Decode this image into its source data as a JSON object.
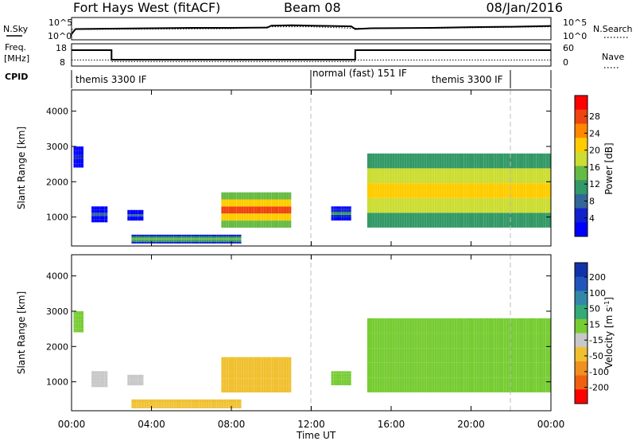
{
  "header": {
    "station": "Fort Hays West (fitACF)",
    "beam": "Beam 08",
    "date": "08/Jan/2016"
  },
  "noise_panel": {
    "left_label": "N.Sky",
    "right_label": "N.Search",
    "top_tick": "10^5",
    "bottom_tick": "10^0"
  },
  "freq_panel": {
    "left_label_line1": "Freq.",
    "left_label_line2": "[MHz]",
    "right_label": "Nave",
    "left_ticks": [
      "18",
      "8"
    ],
    "right_ticks": [
      "60",
      "0"
    ]
  },
  "cpid": {
    "label": "CPID",
    "segments": [
      {
        "name": "themis 3300 IF",
        "start_hour": 0,
        "end_hour": 12
      },
      {
        "name": "normal (fast) 151 IF",
        "start_hour": 12,
        "end_hour": 22
      },
      {
        "name": "themis 3300 IF",
        "start_hour": 22,
        "end_hour": 24
      }
    ]
  },
  "power_colorbar": {
    "label": "Power [dB]",
    "ticks": [
      "28",
      "24",
      "20",
      "16",
      "12",
      "8",
      "4"
    ],
    "colors": [
      "#ff0000",
      "#ee4411",
      "#ff8800",
      "#ffcc00",
      "#ccdd33",
      "#66bb44",
      "#339966",
      "#336699",
      "#1122cc",
      "#0000ff"
    ]
  },
  "velocity_colorbar": {
    "label": "Velocity [m s",
    "label_sup": "-1",
    "label_end": "]",
    "ticks": [
      "200",
      "100",
      "50",
      "15",
      "-15",
      "-50",
      "-100",
      "-200"
    ],
    "colors": [
      "#1133aa",
      "#2255bb",
      "#3388aa",
      "#33aa77",
      "#77cc33",
      "#c8c8c8",
      "#f0c030",
      "#f09020",
      "#f06010",
      "#ff0000"
    ]
  },
  "range_axis": {
    "label": "Slant Range [km]",
    "ticks": [
      "4000",
      "3000",
      "2000",
      "1000"
    ]
  },
  "time_axis": {
    "label": "Time UT",
    "ticks": [
      "00:00",
      "04:00",
      "08:00",
      "12:00",
      "16:00",
      "20:00",
      "00:00"
    ]
  },
  "chart_data": {
    "type": "heatmap",
    "x_range_hours": [
      0,
      24
    ],
    "y_range_km": [
      180,
      4600
    ],
    "vertical_markers_hours": [
      12,
      22
    ],
    "noise_sky_log10": [
      [
        0,
        1.1
      ],
      [
        0.2,
        2.4
      ],
      [
        2,
        2.5
      ],
      [
        4,
        2.6
      ],
      [
        6,
        2.7
      ],
      [
        8,
        2.7
      ],
      [
        9.8,
        2.8
      ],
      [
        10,
        3.3
      ],
      [
        11,
        3.4
      ],
      [
        12,
        3.3
      ],
      [
        13,
        3.2
      ],
      [
        14,
        3.1
      ],
      [
        14.2,
        2.4
      ],
      [
        15,
        2.6
      ],
      [
        18,
        2.7
      ],
      [
        20,
        2.9
      ],
      [
        22,
        3.0
      ],
      [
        24,
        3.2
      ]
    ],
    "noise_search_log10": [
      [
        0,
        2.3
      ],
      [
        4,
        2.4
      ],
      [
        8,
        2.5
      ],
      [
        10,
        3.0
      ],
      [
        12,
        3.0
      ],
      [
        14.2,
        2.6
      ],
      [
        18,
        2.6
      ],
      [
        24,
        3.0
      ]
    ],
    "frequency_mhz": [
      [
        0,
        15.5
      ],
      [
        2,
        15.5
      ],
      [
        2,
        10.5
      ],
      [
        14.2,
        10.5
      ],
      [
        14.2,
        15.5
      ],
      [
        24,
        15.5
      ]
    ],
    "nave": [
      [
        0,
        14
      ],
      [
        2,
        14
      ],
      [
        2,
        9
      ],
      [
        14.2,
        9
      ],
      [
        14.2,
        14
      ],
      [
        24,
        14
      ]
    ],
    "echo_regions": [
      {
        "name": "early-high",
        "t0": 0.1,
        "t1": 0.6,
        "r0": 2400,
        "r1": 3000,
        "power": 6,
        "velocity": 0
      },
      {
        "name": "early-low",
        "t0": 1.0,
        "t1": 1.8,
        "r0": 850,
        "r1": 1300,
        "power": 9,
        "velocity": -40
      },
      {
        "name": "mid-low",
        "t0": 2.8,
        "t1": 3.6,
        "r0": 900,
        "r1": 1200,
        "power": 8,
        "velocity": -35
      },
      {
        "name": "near-range",
        "t0": 3.0,
        "t1": 8.5,
        "r0": 250,
        "r1": 500,
        "power": 16,
        "velocity": -60
      },
      {
        "name": "evening-patch",
        "t0": 7.5,
        "t1": 11.0,
        "r0": 700,
        "r1": 1700,
        "power": 26,
        "velocity": -70
      },
      {
        "name": "patch-2",
        "t0": 13.0,
        "t1": 14.0,
        "r0": 900,
        "r1": 1300,
        "power": 12,
        "velocity": 0
      },
      {
        "name": "main-band",
        "t0": 14.8,
        "t1": 24.0,
        "r0": 700,
        "r1": 2800,
        "power": 22,
        "velocity": 0
      }
    ]
  }
}
